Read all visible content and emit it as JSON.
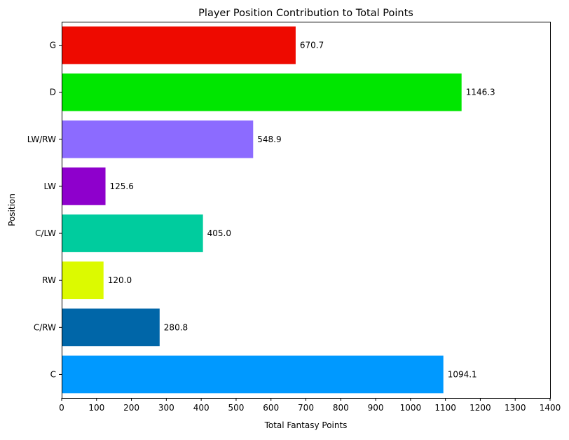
{
  "chart_data": {
    "type": "bar",
    "orientation": "horizontal",
    "title": "Player Position Contribution to Total Points",
    "xlabel": "Total Fantasy Points",
    "ylabel": "Position",
    "xlim": [
      0,
      1400
    ],
    "xticks": [
      0,
      100,
      200,
      300,
      400,
      500,
      600,
      700,
      800,
      900,
      1000,
      1100,
      1200,
      1300,
      1400
    ],
    "grid": false,
    "legend": "none",
    "categories": [
      "C",
      "C/RW",
      "RW",
      "C/LW",
      "LW",
      "LW/RW",
      "D",
      "G"
    ],
    "values": [
      1094.1,
      280.8,
      120.0,
      405.0,
      125.6,
      548.9,
      1146.3,
      670.7
    ],
    "value_labels": [
      "1094.1",
      "280.8",
      "120.0",
      "405.0",
      "125.6",
      "548.9",
      "1146.3",
      "670.7"
    ],
    "colors": [
      "#0099ff",
      "#0066a8",
      "#dcfa00",
      "#00cc9e",
      "#8e00cc",
      "#8c6bff",
      "#00e600",
      "#ee0a00"
    ]
  }
}
